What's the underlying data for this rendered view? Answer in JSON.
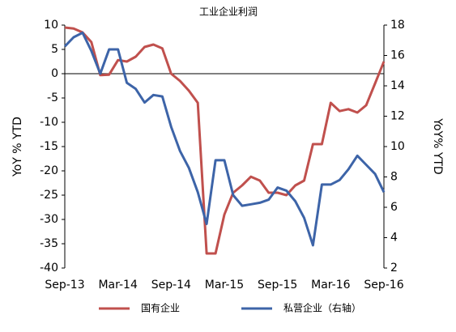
{
  "chart_data": {
    "type": "line",
    "title": "工业企业利润",
    "ylabel": "YoY % YTD",
    "y2label": "YoY% YTD",
    "categories": [
      "Sep-13",
      null,
      null,
      null,
      null,
      null,
      "Mar-14",
      null,
      null,
      null,
      null,
      null,
      "Sep-14",
      null,
      null,
      null,
      null,
      null,
      "Mar-15",
      null,
      null,
      null,
      null,
      null,
      "Sep-15",
      null,
      null,
      null,
      null,
      null,
      "Mar-16",
      null,
      null,
      null,
      null,
      null,
      "Sep-16"
    ],
    "ylim": [
      -40,
      10
    ],
    "yticks": [
      -40,
      -35,
      -30,
      -25,
      -20,
      -15,
      -10,
      -5,
      0,
      5,
      10
    ],
    "y2lim": [
      2,
      18
    ],
    "y2ticks": [
      2,
      4,
      6,
      8,
      10,
      12,
      14,
      16,
      18
    ],
    "series": [
      {
        "name": "国有企业",
        "color": "#c0504d",
        "values": [
          9.5,
          9.3,
          8.5,
          6.5,
          -0.3,
          -0.2,
          2.8,
          2.5,
          3.5,
          5.5,
          6.0,
          5.2,
          0,
          -1.5,
          -3.5,
          -6,
          -37,
          -37,
          -29,
          -24.5,
          -23,
          -21.2,
          -22,
          -24.5,
          -24.5,
          -25,
          -23,
          -22,
          -14.5,
          -14.5,
          -6,
          -7.7,
          -7.3,
          -8,
          -6.5,
          -2,
          2.5
        ]
      },
      {
        "name": "私营企业（右轴）",
        "color": "#3d64a8",
        "axis": "y2",
        "values": [
          16.6,
          17.2,
          17.5,
          16.3,
          14.8,
          16.4,
          16.4,
          14.2,
          13.8,
          12.9,
          13.4,
          13.3,
          11.3,
          9.7,
          8.6,
          7.0,
          4.9,
          9.1,
          9.1,
          6.8,
          6.1,
          6.2,
          6.3,
          6.5,
          7.3,
          7.1,
          6.4,
          5.3,
          3.5,
          7.5,
          7.5,
          7.8,
          8.5,
          9.4,
          8.8,
          8.2,
          7.0
        ]
      }
    ]
  }
}
